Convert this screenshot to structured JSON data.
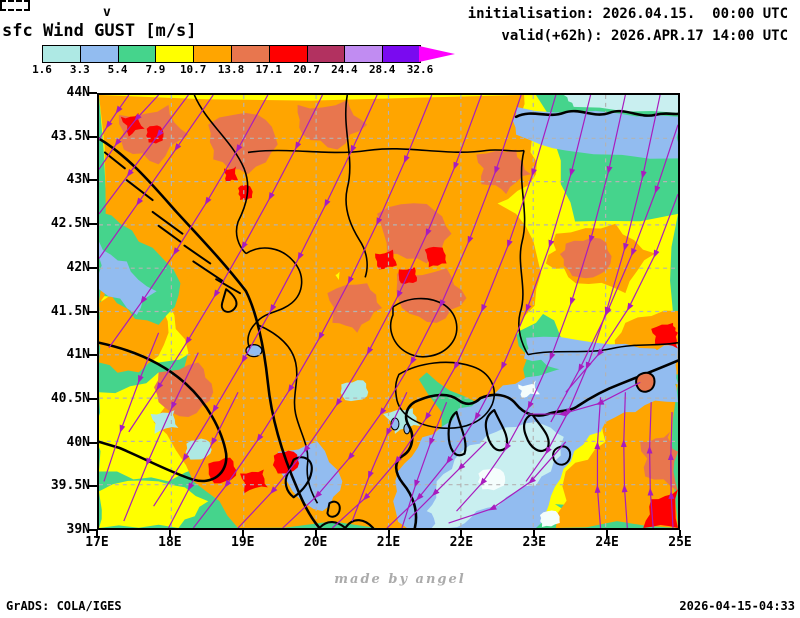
{
  "header": {
    "overlay_char": "v",
    "title": "sfc Wind GUST [m/s]",
    "init": "initialisation: 2026.04.15.  00:00 UTC",
    "valid": "valid(+62h): 2026.APR.17 14:00 UTC"
  },
  "chart_data": {
    "type": "heatmap",
    "subtype": "filled-contour weather map with streamline overlay",
    "variable": "sfc Wind GUST",
    "units": "m/s",
    "initialisation": "2026.04.15. 00:00 UTC",
    "valid": "2026.APR.17 14:00 UTC",
    "lead_time": "+62h",
    "region": {
      "lon_min": 17,
      "lon_max": 25,
      "lat_min": 39,
      "lat_max": 44
    },
    "colorbar": {
      "levels": [
        "1.6",
        "3.3",
        "5.4",
        "7.9",
        "10.7",
        "13.8",
        "17.1",
        "20.7",
        "24.4",
        "28.4",
        "32.6"
      ],
      "colors": [
        "#aee9e4",
        "#92bcf0",
        "#45d48c",
        "#ffff00",
        "#ffa500",
        "#e8764e",
        "#ff0000",
        "#b23160",
        "#c18cf2",
        "#7a0af0"
      ],
      "below_style": "white-dashed-arrow",
      "above_color": "#ff00ff"
    },
    "x_axis": {
      "ticks": [
        "17E",
        "18E",
        "19E",
        "20E",
        "21E",
        "22E",
        "23E",
        "24E",
        "25E"
      ]
    },
    "y_axis": {
      "ticks": [
        "44N",
        "43.5N",
        "43N",
        "42.5N",
        "42N",
        "41.5N",
        "41N",
        "40.5N",
        "40N",
        "39.5N",
        "39N"
      ]
    },
    "grid": true,
    "overlay": {
      "type": "streamlines",
      "color": "#a81cbe"
    },
    "field_summary": "Strong gusts (10-20 m/s, orange/red) over the NW Balkans, Adriatic and Serbia; light winds (<5 m/s, blue) over N Greece, the Aegean and along the lower Danube"
  },
  "footer": {
    "grads": "GrADS: COLA/IGES",
    "credit": "made by angel",
    "timestamp": "2026-04-15-04:33"
  }
}
